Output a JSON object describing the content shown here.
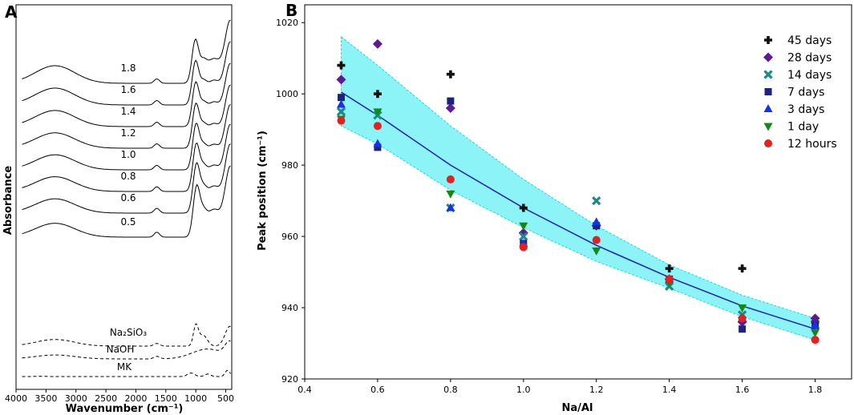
{
  "chart_data": [
    {
      "panel": "A",
      "type": "line",
      "xlabel": "Wavenumber (cm⁻¹)",
      "ylabel": "Absorbance",
      "xlim": [
        4000,
        400
      ],
      "xticks": [
        "4000",
        "3500",
        "3000",
        "2500",
        "2000",
        "1500",
        "1000",
        "500"
      ],
      "series": [
        {
          "name": "1.8",
          "style": "solid"
        },
        {
          "name": "1.6",
          "style": "solid"
        },
        {
          "name": "1.4",
          "style": "solid"
        },
        {
          "name": "1.2",
          "style": "solid"
        },
        {
          "name": "1.0",
          "style": "solid"
        },
        {
          "name": "0.8",
          "style": "solid"
        },
        {
          "name": "0.6",
          "style": "solid"
        },
        {
          "name": "0.5",
          "style": "solid"
        },
        {
          "name": "Na₂SiO₃",
          "style": "dashed"
        },
        {
          "name": "NaOH",
          "style": "dashed"
        },
        {
          "name": "MK",
          "style": "dashed"
        }
      ]
    },
    {
      "panel": "B",
      "type": "scatter",
      "xlabel": "Na/Al",
      "ylabel": "Peak position (cm⁻¹)",
      "xlim": [
        0.4,
        1.9
      ],
      "ylim": [
        920,
        1025
      ],
      "xticks": [
        0.4,
        0.6,
        0.8,
        1.0,
        1.2,
        1.4,
        1.6,
        1.8
      ],
      "yticks": [
        920,
        940,
        960,
        980,
        1000,
        1020
      ],
      "legend_position": "top-right",
      "series": [
        {
          "name": "45 days",
          "marker": "plus",
          "color": "#111111",
          "x": [
            0.5,
            0.6,
            0.8,
            1.0,
            1.4,
            1.6,
            1.8
          ],
          "y": [
            1008,
            1000,
            1005.5,
            968,
            951,
            951,
            936
          ]
        },
        {
          "name": "28 days",
          "marker": "diamond",
          "color": "#5c1a9b",
          "x": [
            0.5,
            0.6,
            0.8,
            1.0,
            1.2,
            1.4,
            1.6,
            1.8
          ],
          "y": [
            1004,
            1014,
            996,
            961,
            963,
            948,
            936,
            937
          ]
        },
        {
          "name": "14 days",
          "marker": "x",
          "color": "#1a8a8a",
          "x": [
            0.5,
            0.6,
            0.8,
            1.0,
            1.2,
            1.4,
            1.6,
            1.8
          ],
          "y": [
            995,
            994,
            968,
            960,
            970,
            946,
            938,
            935
          ]
        },
        {
          "name": "7 days",
          "marker": "square",
          "color": "#1a237e",
          "x": [
            0.5,
            0.6,
            0.8,
            1.0,
            1.2,
            1.4,
            1.6,
            1.8
          ],
          "y": [
            999,
            985,
            998,
            958,
            963,
            948,
            934,
            935
          ]
        },
        {
          "name": "3 days",
          "marker": "triangle-up",
          "color": "#1533e6",
          "x": [
            0.5,
            0.6,
            0.8,
            1.0,
            1.2,
            1.4,
            1.6,
            1.8
          ],
          "y": [
            997,
            986,
            968,
            958,
            964,
            948,
            937,
            935
          ]
        },
        {
          "name": "1 day",
          "marker": "triangle-down",
          "color": "#148a14",
          "x": [
            0.5,
            0.6,
            0.8,
            1.0,
            1.2,
            1.4,
            1.6,
            1.8
          ],
          "y": [
            993,
            995,
            972,
            963,
            956,
            947,
            940,
            933
          ]
        },
        {
          "name": "12 hours",
          "marker": "circle",
          "color": "#e62020",
          "x": [
            0.5,
            0.6,
            0.8,
            1.0,
            1.2,
            1.4,
            1.6,
            1.8
          ],
          "y": [
            992.5,
            991,
            976,
            957,
            959,
            948,
            937,
            931
          ]
        }
      ],
      "fit": {
        "color": "#1f1fb4",
        "band_color": "#00e5ee",
        "x": [
          0.5,
          0.6,
          0.8,
          1.0,
          1.2,
          1.4,
          1.6,
          1.8
        ],
        "y": [
          1000.5,
          994,
          980,
          968,
          957.5,
          948.5,
          940.5,
          934
        ],
        "upper": [
          1016,
          1008,
          991,
          976,
          963,
          952,
          943.5,
          937
        ],
        "lower": [
          991,
          986,
          973,
          962.5,
          953,
          945.5,
          937.5,
          931
        ]
      }
    }
  ]
}
